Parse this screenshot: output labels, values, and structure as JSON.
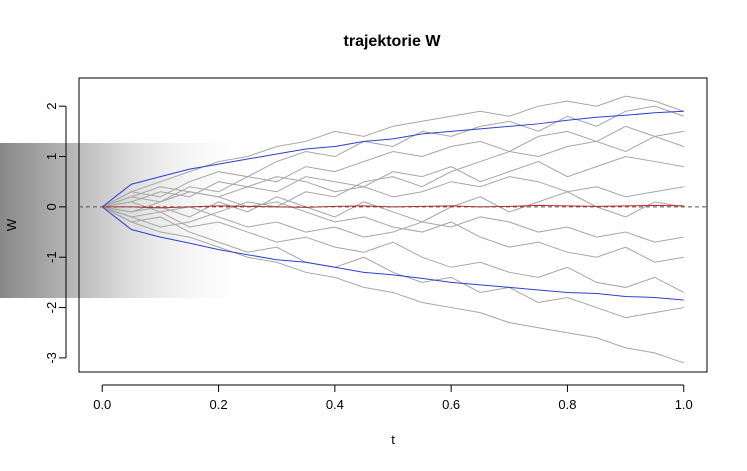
{
  "chart_data": {
    "type": "line",
    "title": "trajektorie W",
    "xlabel": "t",
    "ylabel": "W",
    "x": [
      0,
      0.05,
      0.1,
      0.15,
      0.2,
      0.25,
      0.3,
      0.35,
      0.4,
      0.45,
      0.5,
      0.55,
      0.6,
      0.65,
      0.7,
      0.75,
      0.8,
      0.85,
      0.9,
      0.95,
      1.0
    ],
    "xlim": [
      -0.04,
      1.04
    ],
    "ylim": [
      -3.28,
      2.56
    ],
    "xticks": [
      {
        "value": 0,
        "label": "0.0"
      },
      {
        "value": 0.2,
        "label": "0.2"
      },
      {
        "value": 0.4,
        "label": "0.4"
      },
      {
        "value": 0.6,
        "label": "0.6"
      },
      {
        "value": 0.8,
        "label": "0.8"
      },
      {
        "value": 1,
        "label": "1.0"
      }
    ],
    "yticks": [
      -3,
      -2,
      -1,
      0,
      1,
      2
    ],
    "hlines": [
      0
    ],
    "series": [
      {
        "color": "#a6a6a6",
        "values": [
          0,
          0.3,
          0.5,
          0.7,
          0.9,
          1.0,
          1.2,
          1.3,
          1.5,
          1.4,
          1.6,
          1.7,
          1.8,
          1.9,
          1.8,
          2.0,
          2.1,
          2.0,
          2.2,
          2.1,
          1.9
        ]
      },
      {
        "color": "#a6a6a6",
        "values": [
          0,
          -0.3,
          -0.5,
          -0.6,
          -0.8,
          -1.0,
          -1.1,
          -1.3,
          -1.4,
          -1.6,
          -1.7,
          -1.9,
          -2.0,
          -2.1,
          -2.3,
          -2.4,
          -2.5,
          -2.6,
          -2.8,
          -2.9,
          -3.1
        ]
      },
      {
        "color": "#a6a6a6",
        "values": [
          0,
          0.2,
          0.1,
          0.4,
          0.3,
          0.6,
          0.5,
          0.8,
          0.7,
          0.9,
          1.1,
          1.0,
          1.2,
          1.3,
          1.1,
          1.4,
          1.5,
          1.3,
          1.6,
          1.4,
          1.5
        ]
      },
      {
        "color": "#a6a6a6",
        "values": [
          0,
          -0.2,
          -0.1,
          -0.4,
          -0.3,
          -0.5,
          -0.7,
          -0.6,
          -0.8,
          -0.9,
          -0.7,
          -1.0,
          -1.2,
          -1.1,
          -1.3,
          -1.4,
          -1.2,
          -1.5,
          -1.6,
          -1.4,
          -1.7
        ]
      },
      {
        "color": "#a6a6a6",
        "values": [
          0,
          0.1,
          0.3,
          0.2,
          0.5,
          0.4,
          0.3,
          0.6,
          0.5,
          0.4,
          0.7,
          0.6,
          0.8,
          0.5,
          0.7,
          0.9,
          0.6,
          0.8,
          1.0,
          0.9,
          0.8
        ]
      },
      {
        "color": "#a6a6a6",
        "values": [
          0,
          -0.1,
          0.0,
          -0.2,
          0.1,
          -0.1,
          0.2,
          0.0,
          -0.2,
          0.1,
          -0.1,
          -0.3,
          0.0,
          0.2,
          -0.1,
          0.1,
          0.3,
          0.0,
          -0.2,
          0.1,
          0.0
        ]
      },
      {
        "color": "#a6a6a6",
        "values": [
          0,
          0.2,
          0.4,
          0.3,
          0.2,
          0.0,
          0.1,
          -0.1,
          -0.3,
          -0.2,
          -0.4,
          -0.5,
          -0.3,
          -0.6,
          -0.8,
          -0.7,
          -0.9,
          -1.0,
          -0.8,
          -1.1,
          -1.0
        ]
      },
      {
        "color": "#a6a6a6",
        "values": [
          0,
          -0.2,
          -0.4,
          -0.3,
          -0.1,
          0.1,
          0.0,
          0.3,
          0.2,
          0.5,
          0.6,
          0.4,
          0.7,
          0.9,
          1.1,
          1.0,
          1.2,
          1.3,
          1.1,
          1.4,
          1.2
        ]
      },
      {
        "color": "#a6a6a6",
        "values": [
          0,
          0.3,
          0.2,
          0.5,
          0.7,
          0.6,
          0.9,
          1.1,
          1.0,
          1.3,
          1.2,
          1.5,
          1.4,
          1.6,
          1.7,
          1.5,
          1.8,
          1.6,
          1.9,
          2.0,
          1.8
        ]
      },
      {
        "color": "#a6a6a6",
        "values": [
          0,
          -0.3,
          -0.2,
          -0.5,
          -0.7,
          -0.9,
          -0.8,
          -1.1,
          -1.2,
          -1.0,
          -1.3,
          -1.5,
          -1.4,
          -1.7,
          -1.6,
          -1.9,
          -1.8,
          -2.0,
          -2.2,
          -2.1,
          -2.0
        ]
      },
      {
        "color": "#a6a6a6",
        "values": [
          0,
          0.1,
          -0.1,
          0.0,
          -0.2,
          -0.4,
          -0.3,
          -0.5,
          -0.4,
          -0.6,
          -0.5,
          -0.3,
          -0.4,
          -0.2,
          -0.3,
          -0.5,
          -0.4,
          -0.6,
          -0.5,
          -0.7,
          -0.6
        ]
      },
      {
        "color": "#a6a6a6",
        "values": [
          0,
          -0.1,
          0.1,
          0.3,
          0.2,
          0.4,
          0.6,
          0.5,
          0.3,
          0.4,
          0.2,
          0.3,
          0.5,
          0.4,
          0.6,
          0.5,
          0.3,
          0.4,
          0.2,
          0.3,
          0.4
        ]
      },
      {
        "color": "#2f3fd0",
        "values": [
          0,
          0.45,
          0.6,
          0.75,
          0.85,
          0.95,
          1.05,
          1.15,
          1.2,
          1.3,
          1.35,
          1.45,
          1.5,
          1.55,
          1.6,
          1.65,
          1.72,
          1.78,
          1.82,
          1.87,
          1.9
        ]
      },
      {
        "color": "#2f3fd0",
        "values": [
          0,
          -0.45,
          -0.6,
          -0.72,
          -0.85,
          -0.95,
          -1.05,
          -1.1,
          -1.2,
          -1.3,
          -1.35,
          -1.42,
          -1.5,
          -1.55,
          -1.6,
          -1.65,
          -1.7,
          -1.72,
          -1.78,
          -1.8,
          -1.85
        ]
      },
      {
        "color": "#d62020",
        "values": [
          0,
          0.0,
          -0.02,
          0.0,
          0.02,
          0.01,
          0.0,
          -0.01,
          0.01,
          0.02,
          0.0,
          0.01,
          0.02,
          0.0,
          0.01,
          0.03,
          0.02,
          0.01,
          0.02,
          0.03,
          0.02
        ]
      }
    ]
  }
}
